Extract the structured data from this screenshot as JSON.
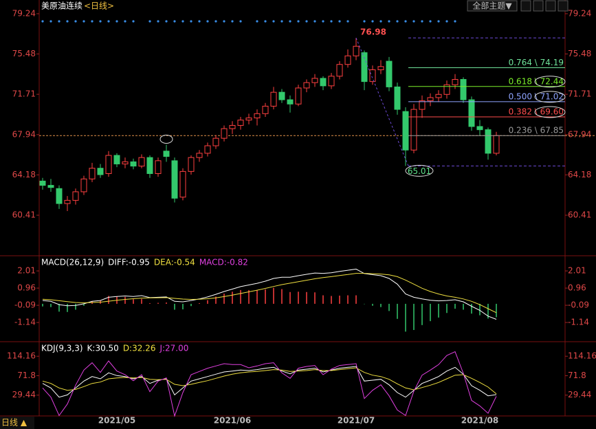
{
  "toolbar": {
    "theme_button": "全部主题▼"
  },
  "status": "日线 ▲",
  "chart_data": [
    {
      "type": "candlestick",
      "title": "美原油连续",
      "period": "<日线>",
      "ylim": [
        56.75,
        79.75
      ],
      "yticks": [
        79.24,
        75.48,
        71.71,
        67.94,
        64.18,
        60.41
      ],
      "up_color": "#ff4040",
      "down_color": "#33c96c",
      "last_price": 67.85,
      "last_price_color": "#e0904a",
      "peak": 76.98,
      "trough": 65.01,
      "fib": {
        "color": "#6d4bd8",
        "levels": [
          {
            "value": 74.19,
            "label": "0.764 \\ 74.19",
            "color": "#6fe39a",
            "circled": false
          },
          {
            "value": 72.44,
            "label": "0.618 \\ 72.44",
            "color": "#7cf02a",
            "circled": true
          },
          {
            "value": 71.02,
            "label": "0.500 \\ 71.02",
            "color": "#8fa4ff",
            "circled": true
          },
          {
            "value": 69.6,
            "label": "0.382 \\ 69.60",
            "color": "#ff4d4d",
            "circled": true
          },
          {
            "value": 67.85,
            "label": "0.236 \\ 67.85",
            "color": "#9a9a9a",
            "circled": false
          }
        ]
      },
      "candles": [
        [
          63.6,
          63.9,
          62.8,
          63.2
        ],
        [
          63.2,
          63.8,
          62.6,
          63.0
        ],
        [
          62.9,
          63.2,
          61.0,
          61.5
        ],
        [
          61.5,
          62.2,
          60.8,
          61.8
        ],
        [
          61.8,
          62.9,
          61.4,
          62.6
        ],
        [
          62.6,
          64.1,
          62.3,
          63.8
        ],
        [
          63.8,
          65.3,
          63.5,
          64.8
        ],
        [
          64.8,
          65.2,
          63.9,
          64.2
        ],
        [
          64.3,
          66.4,
          64.0,
          66.0
        ],
        [
          66.0,
          66.2,
          64.9,
          65.2
        ],
        [
          65.2,
          65.8,
          64.8,
          65.4
        ],
        [
          65.4,
          65.7,
          64.7,
          65.0
        ],
        [
          65.0,
          66.1,
          64.8,
          65.8
        ],
        [
          65.8,
          66.0,
          63.9,
          64.3
        ],
        [
          64.3,
          65.8,
          64.0,
          65.5
        ],
        [
          66.4,
          67.0,
          65.4,
          65.9
        ],
        [
          65.5,
          65.8,
          61.6,
          62.0
        ],
        [
          62.1,
          64.8,
          61.8,
          64.5
        ],
        [
          64.5,
          66.0,
          64.2,
          65.8
        ],
        [
          65.8,
          66.5,
          65.4,
          66.2
        ],
        [
          66.2,
          67.2,
          65.9,
          66.9
        ],
        [
          66.9,
          67.9,
          66.6,
          67.6
        ],
        [
          67.6,
          68.8,
          67.3,
          68.5
        ],
        [
          68.5,
          69.2,
          68.0,
          68.8
        ],
        [
          68.8,
          69.6,
          68.4,
          69.3
        ],
        [
          69.3,
          69.9,
          68.9,
          69.5
        ],
        [
          69.5,
          70.3,
          68.8,
          69.9
        ],
        [
          69.9,
          70.9,
          69.6,
          70.6
        ],
        [
          70.6,
          72.4,
          70.3,
          71.9
        ],
        [
          71.9,
          72.2,
          70.9,
          71.2
        ],
        [
          71.2,
          71.6,
          70.0,
          70.8
        ],
        [
          70.8,
          72.6,
          70.6,
          72.3
        ],
        [
          72.3,
          73.1,
          71.9,
          72.8
        ],
        [
          72.8,
          73.6,
          72.4,
          73.2
        ],
        [
          73.2,
          73.4,
          72.1,
          72.5
        ],
        [
          72.5,
          73.7,
          72.2,
          73.4
        ],
        [
          73.4,
          74.8,
          73.1,
          74.5
        ],
        [
          74.5,
          75.9,
          74.2,
          75.3
        ],
        [
          75.3,
          76.98,
          74.9,
          76.2
        ],
        [
          75.6,
          75.8,
          72.1,
          72.9
        ],
        [
          72.9,
          74.4,
          72.6,
          74.0
        ],
        [
          74.0,
          74.9,
          73.6,
          74.3
        ],
        [
          74.8,
          75.2,
          72.0,
          72.4
        ],
        [
          72.4,
          72.8,
          69.8,
          70.3
        ],
        [
          70.1,
          70.5,
          65.01,
          66.5
        ],
        [
          66.5,
          70.8,
          66.2,
          70.3
        ],
        [
          70.3,
          71.6,
          69.5,
          71.1
        ],
        [
          71.1,
          71.8,
          70.6,
          71.4
        ],
        [
          71.4,
          72.1,
          71.0,
          71.7
        ],
        [
          71.7,
          73.0,
          71.3,
          72.6
        ],
        [
          72.6,
          73.6,
          72.2,
          73.1
        ],
        [
          73.1,
          73.3,
          70.9,
          71.2
        ],
        [
          71.2,
          71.5,
          68.3,
          68.7
        ],
        [
          68.7,
          69.3,
          67.9,
          68.4
        ],
        [
          68.4,
          68.6,
          65.6,
          66.2
        ],
        [
          66.2,
          68.2,
          66.0,
          67.85
        ]
      ]
    },
    {
      "type": "macd",
      "indicator": "MACD(26,12,9)",
      "readouts": [
        {
          "text": "DIFF:-0.95",
          "color": "#ffffff"
        },
        {
          "text": "DEA:-0.54",
          "color": "#f0e040"
        },
        {
          "text": "MACD:-0.82",
          "color": "#e040e0"
        }
      ],
      "ylim": [
        -2.23,
        2.39
      ],
      "yticks": [
        2.01,
        0.96,
        -0.09,
        -1.14
      ],
      "series": [
        {
          "style": "line",
          "color": "#ffffff",
          "values": [
            0.2,
            0.15,
            -0.05,
            -0.12,
            -0.1,
            0.0,
            0.15,
            0.2,
            0.4,
            0.45,
            0.48,
            0.45,
            0.5,
            0.38,
            0.4,
            0.42,
            0.15,
            0.12,
            0.2,
            0.3,
            0.42,
            0.58,
            0.75,
            0.9,
            1.05,
            1.15,
            1.25,
            1.38,
            1.55,
            1.62,
            1.62,
            1.72,
            1.8,
            1.88,
            1.86,
            1.9,
            1.98,
            2.05,
            2.12,
            1.85,
            1.78,
            1.72,
            1.55,
            1.2,
            0.6,
            0.4,
            0.3,
            0.22,
            0.18,
            0.2,
            0.25,
            0.12,
            -0.15,
            -0.4,
            -0.75,
            -0.95
          ]
        },
        {
          "style": "line",
          "color": "#f0e040",
          "values": [
            0.28,
            0.25,
            0.19,
            0.13,
            0.08,
            0.06,
            0.08,
            0.1,
            0.16,
            0.22,
            0.27,
            0.31,
            0.35,
            0.36,
            0.37,
            0.38,
            0.33,
            0.29,
            0.27,
            0.28,
            0.31,
            0.36,
            0.44,
            0.53,
            0.63,
            0.73,
            0.83,
            0.94,
            1.06,
            1.17,
            1.26,
            1.35,
            1.44,
            1.53,
            1.6,
            1.66,
            1.73,
            1.79,
            1.86,
            1.86,
            1.84,
            1.82,
            1.77,
            1.66,
            1.45,
            1.2,
            0.95,
            0.75,
            0.6,
            0.48,
            0.4,
            0.3,
            0.15,
            -0.05,
            -0.3,
            -0.54
          ]
        },
        {
          "style": "bar",
          "color": "#ff4040",
          "negative_color": "#33c96c",
          "values": [
            -0.16,
            -0.2,
            -0.48,
            -0.5,
            -0.36,
            -0.12,
            0.14,
            0.2,
            0.48,
            0.46,
            0.42,
            0.28,
            0.3,
            0.04,
            0.06,
            0.08,
            -0.36,
            -0.34,
            -0.14,
            0.04,
            0.22,
            0.44,
            0.62,
            0.74,
            0.84,
            0.84,
            0.84,
            0.88,
            0.98,
            0.9,
            0.72,
            0.74,
            0.72,
            0.7,
            0.52,
            0.48,
            0.5,
            0.52,
            0.52,
            -0.02,
            -0.12,
            -0.2,
            -0.44,
            -0.92,
            -1.7,
            -1.6,
            -1.3,
            -1.06,
            -0.84,
            -0.56,
            -0.3,
            -0.36,
            -0.6,
            -0.7,
            -0.9,
            -0.82
          ]
        }
      ]
    },
    {
      "type": "kdj",
      "indicator": "KDJ(9,3,3)",
      "readouts": [
        {
          "text": "K:30.50",
          "color": "#ffffff"
        },
        {
          "text": "D:32.26",
          "color": "#f0e040"
        },
        {
          "text": "J:27.00",
          "color": "#e040e0"
        }
      ],
      "ylim": [
        -15.9,
        141.4
      ],
      "yticks": [
        114.16,
        71.8,
        29.44
      ],
      "categories": [
        null,
        null,
        null,
        null,
        null,
        null,
        null,
        null,
        null,
        "2021/05",
        null,
        null,
        null,
        null,
        null,
        null,
        null,
        null,
        null,
        null,
        null,
        null,
        null,
        "2021/06",
        null,
        null,
        null,
        null,
        null,
        null,
        null,
        null,
        null,
        null,
        null,
        null,
        null,
        null,
        "2021/07",
        null,
        null,
        null,
        null,
        null,
        null,
        null,
        null,
        null,
        null,
        null,
        null,
        null,
        null,
        "2021/08",
        null,
        null
      ],
      "series": [
        {
          "color": "#ffffff",
          "values": [
            55,
            45,
            25,
            30,
            45,
            60,
            70,
            65,
            78,
            72,
            70,
            65,
            70,
            55,
            62,
            65,
            30,
            45,
            60,
            65,
            70,
            75,
            80,
            82,
            84,
            83,
            85,
            88,
            90,
            82,
            76,
            84,
            86,
            88,
            80,
            84,
            88,
            90,
            92,
            60,
            62,
            64,
            52,
            35,
            25,
            40,
            55,
            62,
            70,
            82,
            90,
            75,
            50,
            40,
            28,
            30.5
          ]
        },
        {
          "color": "#f0e040",
          "values": [
            60,
            55,
            45,
            40,
            42,
            48,
            55,
            58,
            65,
            67,
            68,
            67,
            68,
            64,
            63,
            64,
            53,
            50,
            53,
            57,
            61,
            66,
            71,
            75,
            78,
            80,
            81,
            83,
            85,
            84,
            81,
            82,
            83,
            85,
            83,
            83,
            85,
            87,
            89,
            79,
            73,
            70,
            64,
            54,
            45,
            41,
            46,
            51,
            57,
            65,
            73,
            74,
            66,
            57,
            47,
            32.26
          ]
        },
        {
          "color": "#e040e0",
          "values": [
            45,
            25,
            -15,
            10,
            51,
            84,
            100,
            79,
            104,
            82,
            74,
            61,
            74,
            37,
            60,
            67,
            -16,
            35,
            74,
            81,
            88,
            93,
            98,
            96,
            96,
            89,
            93,
            98,
            100,
            78,
            66,
            88,
            92,
            94,
            74,
            86,
            94,
            96,
            98,
            22,
            40,
            52,
            28,
            -3,
            -15,
            38,
            73,
            84,
            96,
            116,
            124,
            77,
            18,
            6,
            -10,
            27.0
          ]
        }
      ]
    }
  ]
}
